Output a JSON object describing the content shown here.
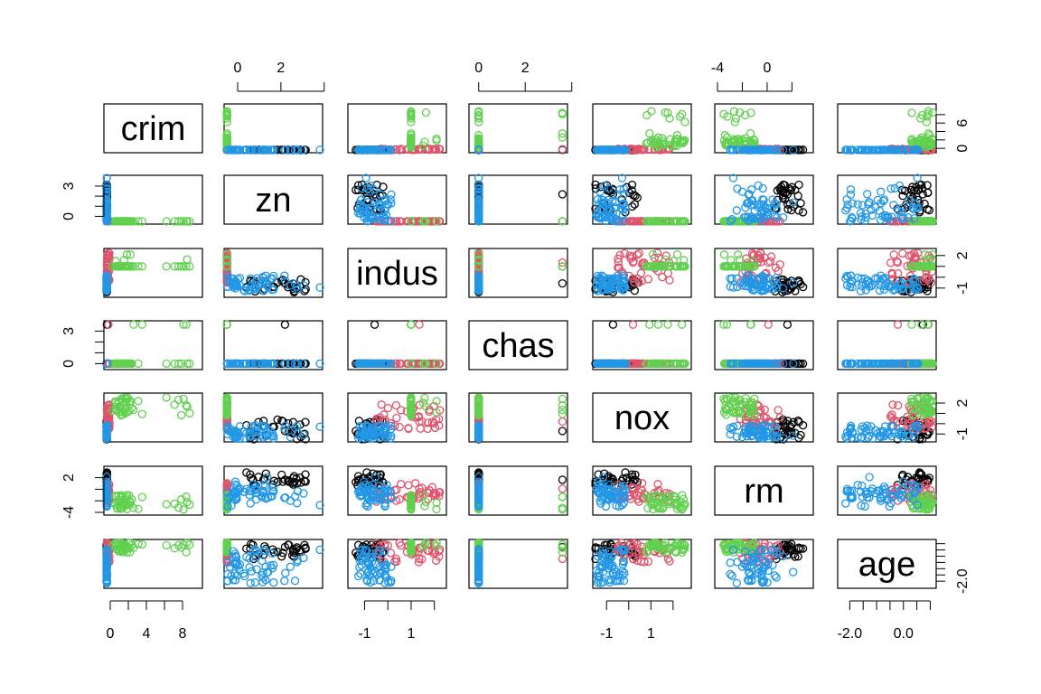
{
  "chart_data": {
    "type": "scatter",
    "variables": [
      "crim",
      "zn",
      "indus",
      "chas",
      "nox",
      "rm",
      "age"
    ],
    "point_style": "open-circle",
    "groups": [
      {
        "color": "#000000"
      },
      {
        "color": "#DF536B"
      },
      {
        "color": "#61D04F"
      },
      {
        "color": "#2297E6"
      }
    ],
    "ranges": {
      "crim": [
        -0.4,
        9.9
      ],
      "zn": [
        -0.5,
        3.8
      ],
      "indus": [
        -1.6,
        2.4
      ],
      "chas": [
        -0.3,
        3.7
      ],
      "nox": [
        -1.5,
        2.7
      ],
      "rm": [
        -4.0,
        3.5
      ],
      "age": [
        -2.35,
        1.12
      ]
    },
    "axes": [
      {
        "var": "zn",
        "side": "top",
        "ticks": [
          0,
          2,
          4
        ],
        "labels": [
          "0",
          "2",
          ""
        ]
      },
      {
        "var": "chas",
        "side": "top",
        "ticks": [
          0,
          2,
          4
        ],
        "labels": [
          "0",
          "2",
          ""
        ]
      },
      {
        "var": "rm",
        "side": "top",
        "ticks": [
          -4,
          -2,
          0,
          2
        ],
        "labels": [
          "-4",
          "",
          "0",
          ""
        ]
      },
      {
        "var": "crim",
        "side": "right",
        "ticks": [
          0,
          2,
          4,
          6,
          8
        ],
        "labels": [
          "0",
          "",
          "",
          "6",
          ""
        ]
      },
      {
        "var": "indus",
        "side": "right",
        "ticks": [
          -1,
          0,
          1,
          2
        ],
        "labels": [
          "-1",
          "",
          "",
          "2"
        ]
      },
      {
        "var": "nox",
        "side": "right",
        "ticks": [
          -1,
          0,
          1,
          2
        ],
        "labels": [
          "-1",
          "",
          "",
          "2"
        ]
      },
      {
        "var": "age",
        "side": "right",
        "ticks": [
          -2.0,
          -1.5,
          -1.0,
          -0.5,
          0.0,
          0.5,
          1.0
        ],
        "labels": [
          "-2.0",
          "",
          "",
          "",
          "",
          "",
          ""
        ]
      },
      {
        "var": "zn",
        "side": "left",
        "ticks": [
          0,
          1,
          2,
          3
        ],
        "labels": [
          "0",
          "",
          "",
          "3"
        ]
      },
      {
        "var": "chas",
        "side": "left",
        "ticks": [
          0,
          1,
          2,
          3
        ],
        "labels": [
          "0",
          "",
          "",
          "3"
        ]
      },
      {
        "var": "rm",
        "side": "left",
        "ticks": [
          -4,
          -2,
          0,
          2
        ],
        "labels": [
          "-4",
          "",
          "",
          "2"
        ]
      },
      {
        "var": "crim",
        "side": "bottom",
        "ticks": [
          0,
          2,
          4,
          6,
          8
        ],
        "labels": [
          "0",
          "",
          "4",
          "",
          "8"
        ]
      },
      {
        "var": "indus",
        "side": "bottom",
        "ticks": [
          -1,
          0,
          1,
          2
        ],
        "labels": [
          "-1",
          "",
          "1",
          ""
        ]
      },
      {
        "var": "nox",
        "side": "bottom",
        "ticks": [
          -1,
          0,
          1,
          2
        ],
        "labels": [
          "-1",
          "",
          "1",
          ""
        ]
      },
      {
        "var": "age",
        "side": "bottom",
        "ticks": [
          -2.0,
          -1.5,
          -1.0,
          -0.5,
          0.0,
          0.5,
          1.0
        ],
        "labels": [
          "-2.0",
          "",
          "",
          "",
          "0.0",
          "",
          ""
        ]
      }
    ]
  }
}
